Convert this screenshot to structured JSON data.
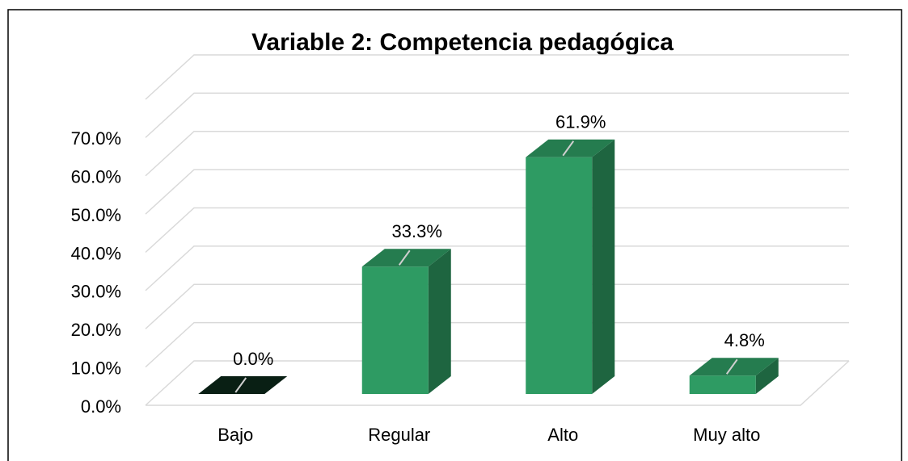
{
  "chart_data": {
    "type": "bar3d",
    "title": "Variable 2: Competencia pedagógica",
    "categories": [
      "Bajo",
      "Regular",
      "Alto",
      "Muy alto"
    ],
    "values": [
      0,
      33.3,
      61.9,
      4.8
    ],
    "value_labels": [
      "0.0%",
      "33.3%",
      "61.9%",
      "4.8%"
    ],
    "color": "#2e9b63",
    "ylim": [
      0,
      80
    ],
    "yticks": [
      {
        "value": 0,
        "label": "0.0%"
      },
      {
        "value": 10,
        "label": "10.0%"
      },
      {
        "value": 20,
        "label": "20.0%"
      },
      {
        "value": 30,
        "label": "30.0%"
      },
      {
        "value": 40,
        "label": "40.0%"
      },
      {
        "value": 50,
        "label": "50.0%"
      },
      {
        "value": 60,
        "label": "60.0%"
      },
      {
        "value": 70,
        "label": "70.0%"
      }
    ],
    "grid": true
  }
}
